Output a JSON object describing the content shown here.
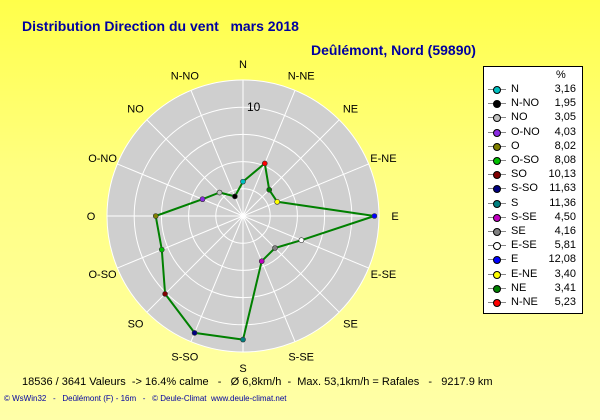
{
  "header": {
    "title": "Distribution Direction du vent   mars 2018",
    "station": "Deûlémont, Nord (59890)"
  },
  "chart_data": {
    "type": "radar",
    "ring_label": "10",
    "rmax": 12.5,
    "directions": [
      "N",
      "N-NE",
      "NE",
      "E-NE",
      "E",
      "E-SE",
      "SE",
      "S-SE",
      "S",
      "S-SO",
      "SO",
      "O-SO",
      "O",
      "O-NO",
      "NO",
      "N-NO"
    ],
    "values": [
      3.16,
      5.23,
      3.41,
      3.4,
      12.08,
      5.81,
      4.16,
      4.5,
      11.36,
      11.63,
      10.13,
      8.08,
      8.02,
      4.03,
      3.05,
      1.95
    ],
    "series_color": "#008000"
  },
  "legend": {
    "header": "%",
    "items": [
      {
        "dir": "N",
        "value": "3,16",
        "color": "#00c0c0"
      },
      {
        "dir": "N-NO",
        "value": "1,95",
        "color": "#000000"
      },
      {
        "dir": "NO",
        "value": "3,05",
        "color": "#c0c0c0"
      },
      {
        "dir": "O-NO",
        "value": "4,03",
        "color": "#8a2be2"
      },
      {
        "dir": "O",
        "value": "8,02",
        "color": "#808000"
      },
      {
        "dir": "O-SO",
        "value": "8,08",
        "color": "#00c000"
      },
      {
        "dir": "SO",
        "value": "10,13",
        "color": "#800000"
      },
      {
        "dir": "S-SO",
        "value": "11,63",
        "color": "#000080"
      },
      {
        "dir": "S",
        "value": "11,36",
        "color": "#008080"
      },
      {
        "dir": "S-SE",
        "value": "4,50",
        "color": "#c000c0"
      },
      {
        "dir": "SE",
        "value": "4,16",
        "color": "#808080"
      },
      {
        "dir": "E-SE",
        "value": "5,81",
        "color": "#ffffff"
      },
      {
        "dir": "E",
        "value": "12,08",
        "color": "#0000ff"
      },
      {
        "dir": "E-NE",
        "value": "3,40",
        "color": "#ffff00"
      },
      {
        "dir": "NE",
        "value": "3,41",
        "color": "#008000"
      },
      {
        "dir": "N-NE",
        "value": "5,23",
        "color": "#ff0000"
      }
    ]
  },
  "summary": "18536 / 3641 Valeurs  -> 16.4% calme   -   Ø 6,8km/h  -  Max. 53,1km/h = Rafales   -   9217.9 km",
  "footer": "© WsWin32   -   Deûlémont (F) - 16m   -   © Deule-Climat  www.deule-climat.net"
}
